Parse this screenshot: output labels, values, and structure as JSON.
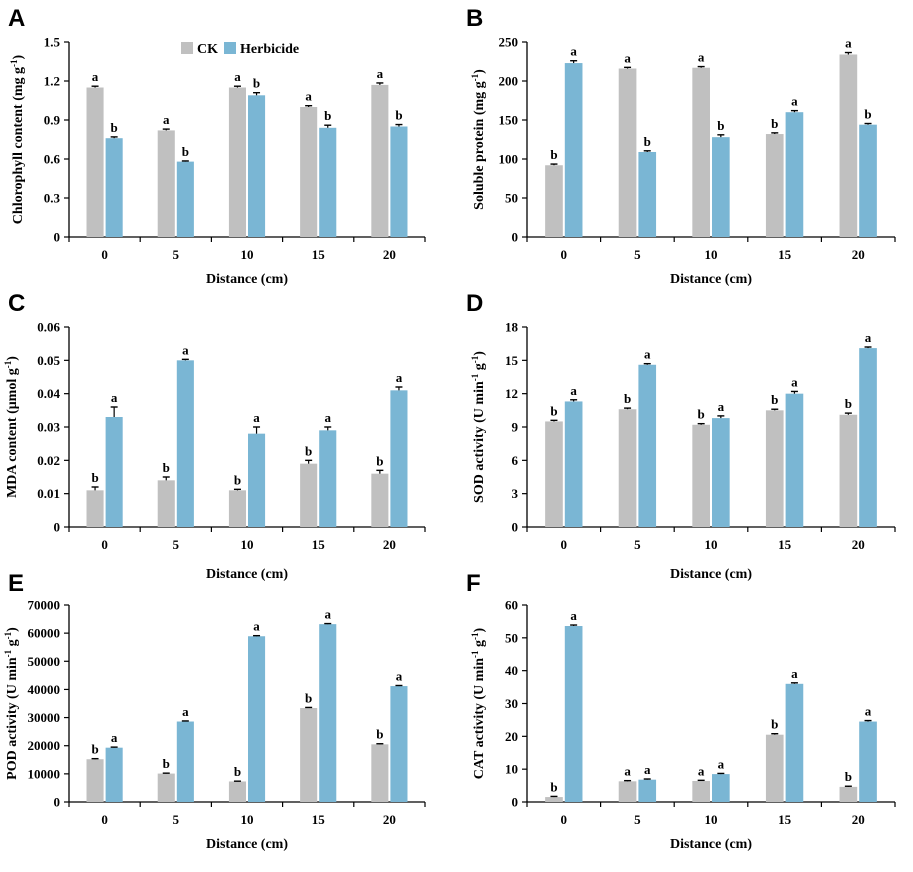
{
  "legend": {
    "ck": "CK",
    "herbicide": "Herbicide"
  },
  "colors": {
    "ck": "#c0c0c0",
    "herbicide": "#7ab6d4",
    "axis": "#000000"
  },
  "chart_data": [
    {
      "type": "bar",
      "letter": "A",
      "title": "",
      "xlabel": "Distance (cm)",
      "ylabel": "Chlorophyll content (mg g-1)",
      "ylabel_main": "Chlorophyll content (mg g",
      "ylabel_sup": "-1",
      "ylabel_end": ")",
      "categories": [
        "0",
        "5",
        "10",
        "15",
        "20"
      ],
      "ylim": [
        0,
        1.5
      ],
      "yticks": [
        "0",
        "0.3",
        "0.6",
        "0.9",
        "1.2",
        "1.5"
      ],
      "yticks_values": [
        0,
        0.3,
        0.6,
        0.9,
        1.2,
        1.5
      ],
      "show_legend": true,
      "series": [
        {
          "name": "CK",
          "values": [
            1.15,
            0.82,
            1.15,
            1.0,
            1.17
          ],
          "errors": [
            0.01,
            0.01,
            0.01,
            0.01,
            0.015
          ],
          "letters": [
            "a",
            "a",
            "a",
            "a",
            "a"
          ]
        },
        {
          "name": "Herbicide",
          "values": [
            0.76,
            0.58,
            1.09,
            0.84,
            0.85
          ],
          "errors": [
            0.01,
            0.005,
            0.02,
            0.02,
            0.015
          ],
          "letters": [
            "b",
            "b",
            "b",
            "b",
            "b"
          ]
        }
      ]
    },
    {
      "type": "bar",
      "letter": "B",
      "title": "",
      "xlabel": "Distance (cm)",
      "ylabel": "Soluble protein (mg g-1)",
      "ylabel_main": "Soluble protein (mg g",
      "ylabel_sup": "-1",
      "ylabel_end": ")",
      "categories": [
        "0",
        "5",
        "10",
        "15",
        "20"
      ],
      "ylim": [
        0,
        250
      ],
      "yticks": [
        "0",
        "50",
        "100",
        "150",
        "200",
        "250"
      ],
      "yticks_values": [
        0,
        50,
        100,
        150,
        200,
        250
      ],
      "show_legend": false,
      "series": [
        {
          "name": "CK",
          "values": [
            92,
            216,
            217,
            132,
            234
          ],
          "errors": [
            1.5,
            1.5,
            1.5,
            1.5,
            2.5
          ],
          "letters": [
            "b",
            "a",
            "a",
            "b",
            "a"
          ]
        },
        {
          "name": "Herbicide",
          "values": [
            223,
            109,
            128,
            160,
            144
          ],
          "errors": [
            3,
            1.5,
            3,
            2,
            1.5
          ],
          "letters": [
            "a",
            "b",
            "b",
            "a",
            "b"
          ]
        }
      ]
    },
    {
      "type": "bar",
      "letter": "C",
      "title": "",
      "xlabel": "Distance (cm)",
      "ylabel": "MDA content (μmol g-1)",
      "ylabel_main": "MDA content (μmol g",
      "ylabel_sup": "-1",
      "ylabel_end": ")",
      "categories": [
        "0",
        "5",
        "10",
        "15",
        "20"
      ],
      "ylim": [
        0,
        0.06
      ],
      "yticks": [
        "0",
        "0.01",
        "0.02",
        "0.03",
        "0.04",
        "0.05",
        "0.06"
      ],
      "yticks_values": [
        0,
        0.01,
        0.02,
        0.03,
        0.04,
        0.05,
        0.06
      ],
      "show_legend": false,
      "series": [
        {
          "name": "CK",
          "values": [
            0.011,
            0.014,
            0.011,
            0.019,
            0.016
          ],
          "errors": [
            0.001,
            0.001,
            0.0003,
            0.001,
            0.001
          ],
          "letters": [
            "b",
            "b",
            "b",
            "b",
            "b"
          ]
        },
        {
          "name": "Herbicide",
          "values": [
            0.033,
            0.05,
            0.028,
            0.029,
            0.041
          ],
          "errors": [
            0.003,
            0.0003,
            0.002,
            0.001,
            0.001
          ],
          "letters": [
            "a",
            "a",
            "a",
            "a",
            "a"
          ]
        }
      ]
    },
    {
      "type": "bar",
      "letter": "D",
      "title": "",
      "xlabel": "Distance (cm)",
      "ylabel": "SOD activity (U min-1 g-1)",
      "ylabel_main": "SOD activity (U min",
      "ylabel_sup": "-1",
      "ylabel_mid": " g",
      "ylabel_sup2": "-1",
      "ylabel_end": ")",
      "categories": [
        "0",
        "5",
        "10",
        "15",
        "20"
      ],
      "ylim": [
        0,
        18
      ],
      "yticks": [
        "0",
        "3",
        "6",
        "9",
        "12",
        "15",
        "18"
      ],
      "yticks_values": [
        0,
        3,
        6,
        9,
        12,
        15,
        18
      ],
      "show_legend": false,
      "series": [
        {
          "name": "CK",
          "values": [
            9.5,
            10.6,
            9.2,
            10.5,
            10.1
          ],
          "errors": [
            0.1,
            0.1,
            0.1,
            0.1,
            0.15
          ],
          "letters": [
            "b",
            "b",
            "b",
            "b",
            "b"
          ]
        },
        {
          "name": "Herbicide",
          "values": [
            11.3,
            14.6,
            9.8,
            12.0,
            16.1
          ],
          "errors": [
            0.15,
            0.1,
            0.2,
            0.2,
            0.1
          ],
          "letters": [
            "a",
            "a",
            "a",
            "a",
            "a"
          ]
        }
      ]
    },
    {
      "type": "bar",
      "letter": "E",
      "title": "",
      "xlabel": "Distance (cm)",
      "ylabel": "POD activity (U min-1 g-1)",
      "ylabel_main": "POD activity (U min",
      "ylabel_sup": "-1",
      "ylabel_mid": " g",
      "ylabel_sup2": "-1",
      "ylabel_end": ")",
      "categories": [
        "0",
        "5",
        "10",
        "15",
        "20"
      ],
      "ylim": [
        0,
        70000
      ],
      "yticks": [
        "0",
        "10000",
        "20000",
        "30000",
        "40000",
        "50000",
        "60000",
        "70000"
      ],
      "yticks_values": [
        0,
        10000,
        20000,
        30000,
        40000,
        50000,
        60000,
        70000
      ],
      "show_legend": false,
      "series": [
        {
          "name": "CK",
          "values": [
            15200,
            10100,
            7300,
            33400,
            20500
          ],
          "errors": [
            200,
            150,
            100,
            200,
            200
          ],
          "letters": [
            "b",
            "b",
            "b",
            "b",
            "b"
          ]
        },
        {
          "name": "Herbicide",
          "values": [
            19300,
            28600,
            58900,
            63200,
            41200
          ],
          "errors": [
            200,
            200,
            200,
            200,
            200
          ],
          "letters": [
            "a",
            "a",
            "a",
            "a",
            "a"
          ]
        }
      ]
    },
    {
      "type": "bar",
      "letter": "F",
      "title": "",
      "xlabel": "Distance (cm)",
      "ylabel": "CAT activity (U min-1 g-1)",
      "ylabel_main": "CAT activity (U min",
      "ylabel_sup": "-1",
      "ylabel_mid": " g",
      "ylabel_sup2": "-1",
      "ylabel_end": ")",
      "categories": [
        "0",
        "5",
        "10",
        "15",
        "20"
      ],
      "ylim": [
        0,
        60
      ],
      "yticks": [
        "0",
        "10",
        "20",
        "30",
        "40",
        "50",
        "60"
      ],
      "yticks_values": [
        0,
        10,
        20,
        30,
        40,
        50,
        60
      ],
      "show_legend": false,
      "series": [
        {
          "name": "CK",
          "values": [
            1.5,
            6.3,
            6.4,
            20.5,
            4.6
          ],
          "errors": [
            0.2,
            0.2,
            0.2,
            0.3,
            0.2
          ],
          "letters": [
            "b",
            "a",
            "a",
            "b",
            "b"
          ]
        },
        {
          "name": "Herbicide",
          "values": [
            53.6,
            6.8,
            8.5,
            36.0,
            24.5
          ],
          "errors": [
            0.3,
            0.2,
            0.2,
            0.3,
            0.3
          ],
          "letters": [
            "a",
            "a",
            "a",
            "a",
            "a"
          ]
        }
      ]
    }
  ]
}
